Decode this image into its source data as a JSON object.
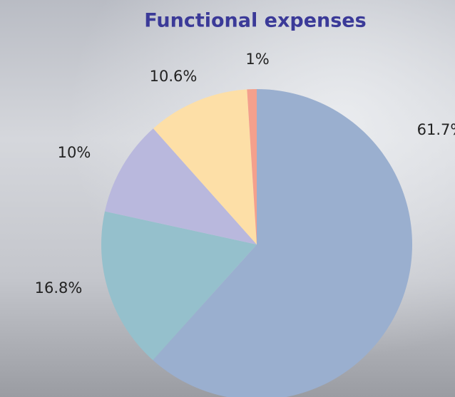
{
  "chart_data": {
    "type": "pie",
    "title": "Functional expenses",
    "values": [
      61.7,
      16.8,
      10,
      10.6,
      1
    ],
    "value_labels": [
      "61.7%",
      "16.8%",
      "10%",
      "10.6%",
      "1%"
    ],
    "colors": [
      "#9aafcf",
      "#95c0cc",
      "#b9b8dd",
      "#fddfa7",
      "#f4a08c"
    ]
  }
}
